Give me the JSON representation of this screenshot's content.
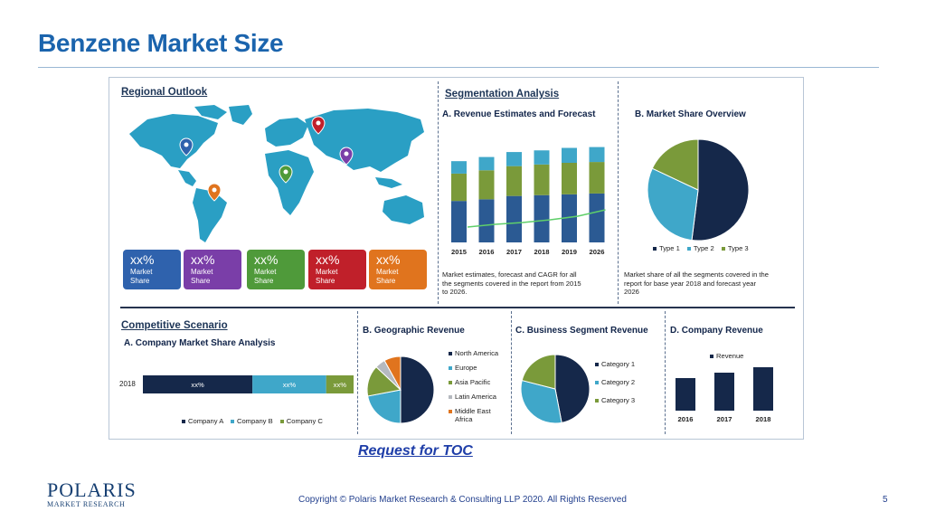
{
  "slide": {
    "title": "Benzene Market Size",
    "toc_link": "Request for TOC",
    "logo_main": "POLARIS",
    "logo_sub": "MARKET RESEARCH",
    "copyright": "Copyright © Polaris Market Research & Consulting LLP 2020. All Rights Reserved",
    "page_number": "5"
  },
  "colors": {
    "navy": "#15284a",
    "blue": "#2b5a93",
    "teal": "#3fa7c9",
    "green": "#7a9a3a",
    "purple": "#7a3ea8",
    "red": "#c0202a",
    "orange": "#e0741e",
    "map": "#2a9fc4"
  },
  "regional": {
    "header": "Regional Outlook",
    "tiles": [
      {
        "value": "xx%",
        "label1": "Market",
        "label2": "Share",
        "color": "#2f62ad"
      },
      {
        "value": "xx%",
        "label1": "Market",
        "label2": "Share",
        "color": "#7a3ea8"
      },
      {
        "value": "xx%",
        "label1": "Market",
        "label2": "Share",
        "color": "#4f9a3a"
      },
      {
        "value": "xx%",
        "label1": "Market",
        "label2": "Share",
        "color": "#c0202a"
      },
      {
        "value": "xx%",
        "label1": "Market",
        "label2": "Share",
        "color": "#e0741e"
      }
    ]
  },
  "segmentation": {
    "header": "Segmentation Analysis",
    "revenue_title": "A. Revenue Estimates and Forecast",
    "revenue_caption": [
      "Market estimates, forecast and CAGR for all",
      "the segments covered in the report from 2015",
      "to 2026."
    ],
    "share_title": "B. Market Share Overview",
    "share_caption": [
      "Market share of all the segments covered in the",
      "report for base year 2018 and forecast year",
      "2026"
    ],
    "share_legend": [
      "Type 1",
      "Type 2",
      "Type 3"
    ]
  },
  "competitive": {
    "header": "Competitive Scenario",
    "subtitle": "A. Company Market Share Analysis",
    "year": "2018",
    "bar_labels": [
      "xx%",
      "xx%",
      "xx%"
    ],
    "legend": [
      "Company A",
      "Company B",
      "Company C"
    ]
  },
  "geographic": {
    "title": "B. Geographic Revenue",
    "legend": [
      "North America",
      "Europe",
      "Asia Pacific",
      "Latin America",
      "Middle East Africa"
    ]
  },
  "business": {
    "title": "C. Business Segment Revenue",
    "legend": [
      "Category 1",
      "Category 2",
      "Category 3"
    ]
  },
  "company_revenue": {
    "title": "D. Company Revenue",
    "legend": "Revenue"
  },
  "chart_data": [
    {
      "type": "bar",
      "title": "A. Revenue Estimates and Forecast",
      "categories": [
        "2015",
        "2016",
        "2017",
        "2018",
        "2019",
        "2026"
      ],
      "stacked": true,
      "series": [
        {
          "values": [
            50,
            52,
            56,
            57,
            58,
            59
          ]
        },
        {
          "values": [
            33,
            35,
            36,
            37,
            38,
            38
          ]
        },
        {
          "values": [
            15,
            16,
            17,
            17,
            18,
            18
          ]
        }
      ],
      "trend": [
        3,
        6,
        8,
        11,
        15,
        22
      ],
      "ylim": [
        0,
        120
      ]
    },
    {
      "type": "pie",
      "title": "B. Market Share Overview",
      "labels": [
        "Type 1",
        "Type 2",
        "Type 3"
      ],
      "values": [
        52,
        30,
        18
      ]
    },
    {
      "type": "bar",
      "title": "A. Company Market Share Analysis",
      "categories": [
        "2018"
      ],
      "stacked": true,
      "horizontal": true,
      "series": [
        {
          "name": "Company A",
          "values": [
            52
          ]
        },
        {
          "name": "Company B",
          "values": [
            35
          ]
        },
        {
          "name": "Company C",
          "values": [
            13
          ]
        }
      ]
    },
    {
      "type": "pie",
      "title": "B. Geographic Revenue",
      "labels": [
        "North America",
        "Europe",
        "Asia Pacific",
        "Latin America",
        "Middle East Africa"
      ],
      "values": [
        50,
        22,
        15,
        5,
        8
      ]
    },
    {
      "type": "pie",
      "title": "C. Business Segment Revenue",
      "labels": [
        "Category 1",
        "Category 2",
        "Category 3"
      ],
      "values": [
        47,
        32,
        21
      ]
    },
    {
      "type": "bar",
      "title": "D. Company Revenue",
      "categories": [
        "2016",
        "2017",
        "2018"
      ],
      "series": [
        {
          "name": "Revenue",
          "values": [
            30,
            35,
            40
          ]
        }
      ],
      "ylim": [
        0,
        50
      ]
    }
  ]
}
